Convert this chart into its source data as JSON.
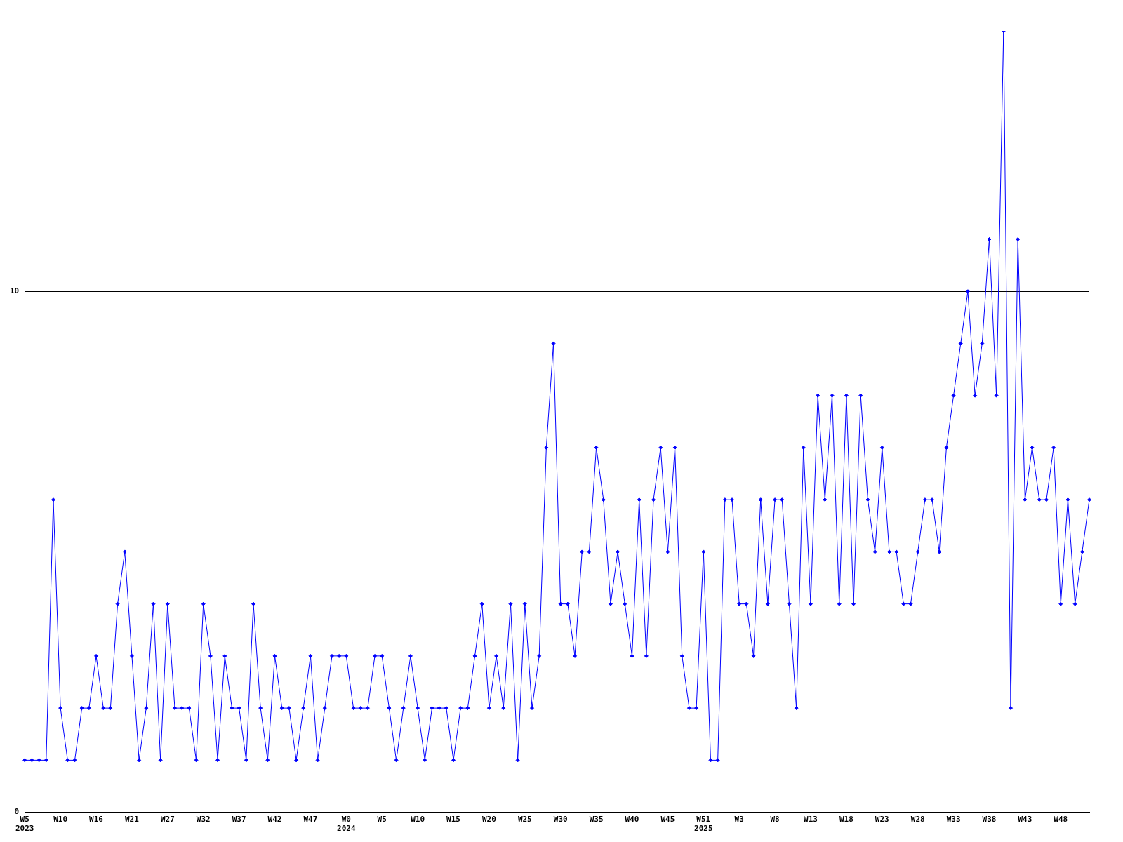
{
  "chart_data": {
    "type": "line",
    "categories": [
      "W5\n2023",
      null,
      null,
      null,
      null,
      "W10",
      null,
      null,
      null,
      null,
      "W16",
      null,
      null,
      null,
      null,
      "W21",
      null,
      null,
      null,
      null,
      "W27",
      null,
      null,
      null,
      null,
      "W32",
      null,
      null,
      null,
      null,
      "W37",
      null,
      null,
      null,
      null,
      "W42",
      null,
      null,
      null,
      null,
      "W47",
      null,
      null,
      null,
      null,
      "W0\n2024",
      null,
      null,
      null,
      null,
      "W5",
      null,
      null,
      null,
      null,
      "W10",
      null,
      null,
      null,
      null,
      "W15",
      null,
      null,
      null,
      null,
      "W20",
      null,
      null,
      null,
      null,
      "W25",
      null,
      null,
      null,
      null,
      "W30",
      null,
      null,
      null,
      null,
      "W35",
      null,
      null,
      null,
      null,
      "W40",
      null,
      null,
      null,
      null,
      "W45",
      null,
      null,
      null,
      null,
      "W51\n2025",
      null,
      null,
      null,
      null,
      "W3",
      null,
      null,
      null,
      null,
      "W8",
      null,
      null,
      null,
      null,
      "W13",
      null,
      null,
      null,
      null,
      "W18",
      null,
      null,
      null,
      null,
      "W23",
      null,
      null,
      null,
      null,
      "W28",
      null,
      null,
      null,
      null,
      "W33",
      null,
      null,
      null,
      null,
      "W38",
      null,
      null,
      null,
      null,
      "W43",
      null,
      null,
      null,
      null,
      "W48",
      null,
      null,
      null,
      null
    ],
    "series": [
      {
        "color": "#0000ff",
        "values": [
          1,
          1,
          1,
          1,
          6,
          2,
          1,
          1,
          2,
          2,
          3,
          2,
          2,
          4,
          5,
          3,
          1,
          2,
          4,
          1,
          4,
          2,
          2,
          2,
          1,
          4,
          3,
          1,
          3,
          2,
          2,
          1,
          4,
          2,
          1,
          3,
          2,
          2,
          1,
          2,
          3,
          1,
          2,
          3,
          3,
          3,
          2,
          2,
          2,
          3,
          3,
          2,
          1,
          2,
          3,
          2,
          1,
          2,
          2,
          2,
          1,
          2,
          2,
          3,
          4,
          2,
          3,
          2,
          4,
          1,
          4,
          2,
          3,
          7,
          9,
          4,
          4,
          3,
          5,
          5,
          7,
          6,
          4,
          5,
          4,
          3,
          6,
          3,
          6,
          7,
          5,
          7,
          3,
          2,
          2,
          5,
          1,
          1,
          6,
          6,
          4,
          4,
          3,
          6,
          4,
          6,
          6,
          4,
          2,
          7,
          4,
          8,
          6,
          8,
          4,
          8,
          4,
          8,
          6,
          5,
          7,
          5,
          5,
          4,
          4,
          5,
          6,
          6,
          5,
          7,
          8,
          9,
          10,
          8,
          9,
          11,
          8,
          15,
          2,
          11,
          6,
          7,
          6,
          6,
          7,
          4,
          6,
          4,
          5,
          6
        ]
      }
    ],
    "ylim": [
      0,
      15
    ],
    "yticks": [
      0,
      10
    ],
    "grid": "y",
    "marker": "diamond",
    "line_style": "solid",
    "legend": false
  }
}
